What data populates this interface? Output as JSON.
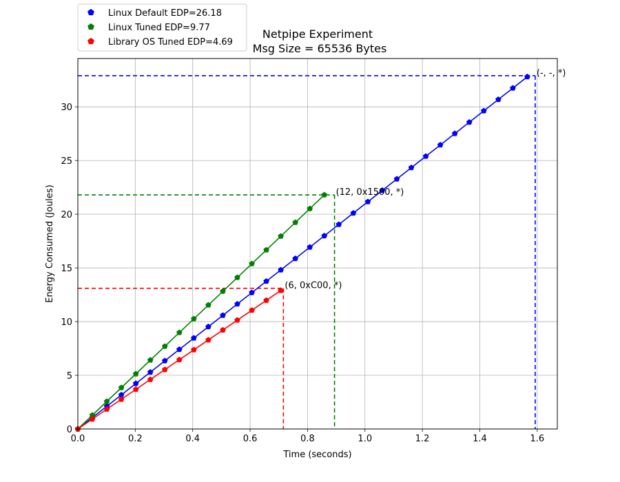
{
  "chart_data": {
    "type": "line",
    "title": "Netpipe Experiment",
    "subtitle": "Msg Size = 65536 Bytes",
    "xlabel": "Time (seconds)",
    "ylabel": "Energy Consumed (Joules)",
    "xlim": [
      0,
      1.67
    ],
    "ylim": [
      0,
      34.5
    ],
    "xticks": [
      0.0,
      0.2,
      0.4,
      0.6,
      0.8,
      1.0,
      1.2,
      1.4,
      1.6
    ],
    "xtick_labels": [
      "0.0",
      "0.2",
      "0.4",
      "0.6",
      "0.8",
      "1.0",
      "1.2",
      "1.4",
      "1.6"
    ],
    "yticks": [
      0,
      5,
      10,
      15,
      20,
      25,
      30
    ],
    "ytick_labels": [
      "0",
      "5",
      "10",
      "15",
      "20",
      "25",
      "30"
    ],
    "grid": true,
    "legend_position": "top-left",
    "series": [
      {
        "name": "Linux Default EDP=26.18",
        "color": "#0000ff",
        "x_step": 0.0505,
        "points": 32,
        "y_max": 32.8,
        "x_max": 1.586,
        "end_x": 1.593,
        "end_y": 32.9,
        "annotation": "(-, -, *)"
      },
      {
        "name": "Linux Tuned EDP=9.77",
        "color": "#008000",
        "x_step": 0.0505,
        "points": 18,
        "y_max": 21.8,
        "x_max": 0.894,
        "end_x": 0.894,
        "end_y": 21.8,
        "annotation": "(12, 0x1500, *)"
      },
      {
        "name": "Library OS Tuned EDP=4.69",
        "color": "#ff0000",
        "x_step": 0.0505,
        "points": 15,
        "y_max": 12.9,
        "x_max": 0.707,
        "end_x": 0.716,
        "end_y": 13.1,
        "annotation": "(6, 0xC00, *)"
      }
    ]
  }
}
